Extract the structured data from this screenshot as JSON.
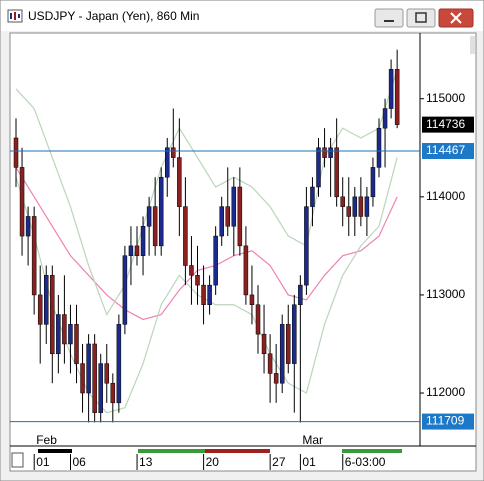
{
  "chart_data": {
    "type": "candlestick",
    "title": "USDJPY - Japan (Yen), 860 Min",
    "ylim": [
      111460,
      115670
    ],
    "yticks": [
      112000,
      113000,
      114000,
      115000
    ],
    "up_color": "#1c2a8c",
    "down_color": "#8b2020",
    "candles": [
      [
        114600,
        114800,
        114100,
        114300
      ],
      [
        114300,
        114500,
        113400,
        113600
      ],
      [
        113600,
        113900,
        113300,
        113800
      ],
      [
        113800,
        113900,
        112800,
        113000
      ],
      [
        113000,
        113300,
        112300,
        112700
      ],
      [
        112700,
        113300,
        112500,
        113200
      ],
      [
        113200,
        113300,
        112100,
        112400
      ],
      [
        112400,
        113000,
        112200,
        112800
      ],
      [
        112800,
        113200,
        112300,
        112500
      ],
      [
        112500,
        112900,
        112200,
        112700
      ],
      [
        112700,
        112900,
        112100,
        112300
      ],
      [
        112300,
        112500,
        111800,
        112000
      ],
      [
        112000,
        112600,
        111700,
        112500
      ],
      [
        112500,
        112600,
        111700,
        111800
      ],
      [
        111800,
        112400,
        111700,
        112300
      ],
      [
        112300,
        112500,
        111900,
        112100
      ],
      [
        112100,
        112200,
        111700,
        111900
      ],
      [
        111900,
        112800,
        111800,
        112700
      ],
      [
        112700,
        113500,
        112600,
        113400
      ],
      [
        113400,
        113700,
        113100,
        113500
      ],
      [
        113500,
        113700,
        113300,
        113400
      ],
      [
        113400,
        113800,
        113200,
        113700
      ],
      [
        113700,
        114000,
        113400,
        113900
      ],
      [
        113900,
        114200,
        113400,
        113500
      ],
      [
        113500,
        114300,
        113400,
        114200
      ],
      [
        114200,
        114600,
        114000,
        114500
      ],
      [
        114500,
        114900,
        114300,
        114400
      ],
      [
        114400,
        114800,
        113600,
        113900
      ],
      [
        113900,
        114200,
        113100,
        113300
      ],
      [
        113300,
        113600,
        112900,
        113200
      ],
      [
        113200,
        113500,
        112900,
        113100
      ],
      [
        113100,
        113300,
        112700,
        112900
      ],
      [
        112900,
        113200,
        112800,
        113100
      ],
      [
        113100,
        113700,
        113000,
        113600
      ],
      [
        113600,
        114000,
        113500,
        113900
      ],
      [
        113900,
        114300,
        113600,
        113700
      ],
      [
        113700,
        114200,
        113400,
        114100
      ],
      [
        114100,
        114300,
        113400,
        113500
      ],
      [
        113500,
        113700,
        112900,
        113000
      ],
      [
        113000,
        113300,
        112700,
        112900
      ],
      [
        112900,
        113100,
        112400,
        112600
      ],
      [
        112600,
        112900,
        112200,
        112400
      ],
      [
        112400,
        112600,
        111900,
        112200
      ],
      [
        112200,
        112500,
        111900,
        112100
      ],
      [
        112100,
        112800,
        112000,
        112700
      ],
      [
        112700,
        112900,
        112200,
        112300
      ],
      [
        112300,
        113000,
        111800,
        112900
      ],
      [
        112900,
        113200,
        111700,
        113100
      ],
      [
        113100,
        114100,
        113000,
        113900
      ],
      [
        113900,
        114200,
        113700,
        114100
      ],
      [
        114100,
        114600,
        114000,
        114500
      ],
      [
        114500,
        114700,
        114300,
        114400
      ],
      [
        114400,
        114600,
        114000,
        114500
      ],
      [
        114500,
        114800,
        113900,
        114000
      ],
      [
        114000,
        114200,
        113700,
        113900
      ],
      [
        113900,
        114200,
        113600,
        113800
      ],
      [
        113800,
        114100,
        113600,
        114000
      ],
      [
        114000,
        114200,
        113700,
        113800
      ],
      [
        113800,
        114100,
        113600,
        114000
      ],
      [
        114000,
        114400,
        113900,
        114300
      ],
      [
        114300,
        114800,
        114200,
        114700
      ],
      [
        114700,
        115000,
        114300,
        114900
      ],
      [
        114900,
        115400,
        114800,
        115300
      ],
      [
        115300,
        115500,
        114700,
        114736
      ]
    ],
    "line_index": [
      0,
      3,
      6,
      9,
      12,
      15,
      18,
      21,
      24,
      27,
      30,
      33,
      36,
      39,
      42,
      45,
      48,
      51,
      54,
      57,
      60,
      63
    ],
    "lines": [
      {
        "color": "#ee82b4",
        "values": [
          114300,
          114000,
          113700,
          113400,
          113200,
          113000,
          112850,
          112750,
          112800,
          113050,
          113250,
          113300,
          113400,
          113450,
          113300,
          113000,
          112950,
          113200,
          113400,
          113450,
          113600,
          114000
        ]
      },
      {
        "color": "#b9d6b9",
        "values": [
          115100,
          114900,
          114400,
          113900,
          113300,
          112800,
          113100,
          113700,
          114300,
          114700,
          114400,
          114100,
          114200,
          114100,
          113900,
          113600,
          113500,
          114400,
          114700,
          114600,
          114700,
          115300
        ]
      },
      {
        "color": "#b9d6b9",
        "values": [
          114200,
          113600,
          112900,
          112400,
          112000,
          111800,
          111850,
          112300,
          112900,
          113200,
          113000,
          112900,
          112900,
          112800,
          112400,
          112100,
          112000,
          112700,
          113200,
          113500,
          113700,
          114400
        ]
      }
    ],
    "last_price": 114736,
    "price_lines": [
      114467,
      111709
    ],
    "month_labels": [
      {
        "label": "Feb",
        "index": 4
      },
      {
        "label": "Mar",
        "index": 48
      }
    ],
    "time_labels": [
      {
        "label": "01",
        "index": 4
      },
      {
        "label": "06",
        "index": 10
      },
      {
        "label": "13",
        "index": 21
      },
      {
        "label": "20",
        "index": 32
      },
      {
        "label": "27",
        "index": 43
      },
      {
        "label": "01",
        "index": 48
      },
      {
        "label": "6-03:00",
        "index": 55
      }
    ]
  }
}
